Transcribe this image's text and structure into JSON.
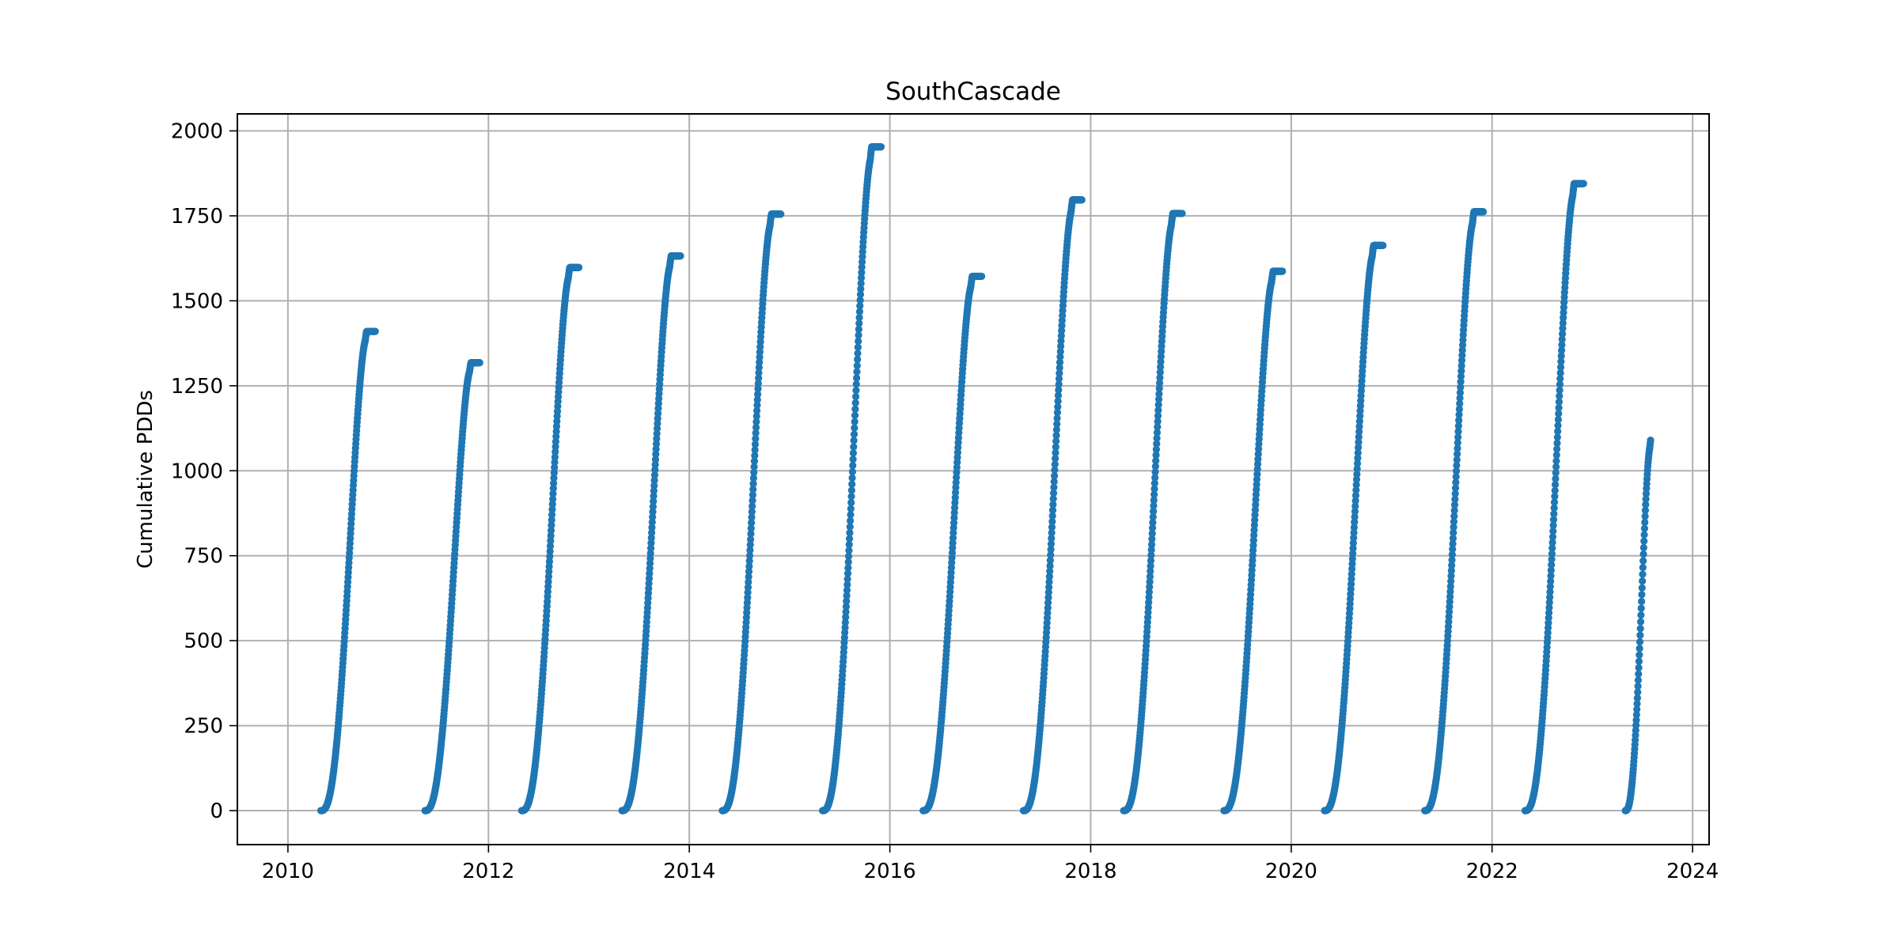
{
  "chart_data": {
    "type": "scatter",
    "title": "SouthCascade",
    "xlabel": "",
    "ylabel": "Cumulative PDDs",
    "x_type": "date",
    "xlim": [
      "2009-07-01",
      "2024-03-01"
    ],
    "ylim": [
      -100,
      2050
    ],
    "x_ticks": [
      "2010",
      "2012",
      "2014",
      "2016",
      "2018",
      "2020",
      "2022",
      "2024"
    ],
    "y_ticks": [
      0,
      250,
      500,
      750,
      1000,
      1250,
      1500,
      1750,
      2000
    ],
    "grid": true,
    "marker_color": "#1f77b4",
    "series": [
      {
        "seasons": [
          {
            "start": "2010-05-01",
            "end": "2010-11-15",
            "final": 1410
          },
          {
            "start": "2011-05-15",
            "end": "2011-11-30",
            "final": 1318
          },
          {
            "start": "2012-05-01",
            "end": "2012-11-25",
            "final": 1598
          },
          {
            "start": "2013-05-01",
            "end": "2013-11-30",
            "final": 1632
          },
          {
            "start": "2014-05-01",
            "end": "2014-11-30",
            "final": 1755
          },
          {
            "start": "2015-05-01",
            "end": "2015-11-30",
            "final": 1953
          },
          {
            "start": "2016-05-01",
            "end": "2016-11-30",
            "final": 1572
          },
          {
            "start": "2017-05-01",
            "end": "2017-11-30",
            "final": 1797
          },
          {
            "start": "2018-05-01",
            "end": "2018-11-30",
            "final": 1757
          },
          {
            "start": "2019-05-01",
            "end": "2019-11-30",
            "final": 1587
          },
          {
            "start": "2020-05-01",
            "end": "2020-11-30",
            "final": 1663
          },
          {
            "start": "2021-05-01",
            "end": "2021-11-30",
            "final": 1762
          },
          {
            "start": "2022-05-01",
            "end": "2022-11-30",
            "final": 1845
          },
          {
            "start": "2023-05-01",
            "end": "2023-08-01",
            "final": 1090
          }
        ]
      }
    ]
  }
}
